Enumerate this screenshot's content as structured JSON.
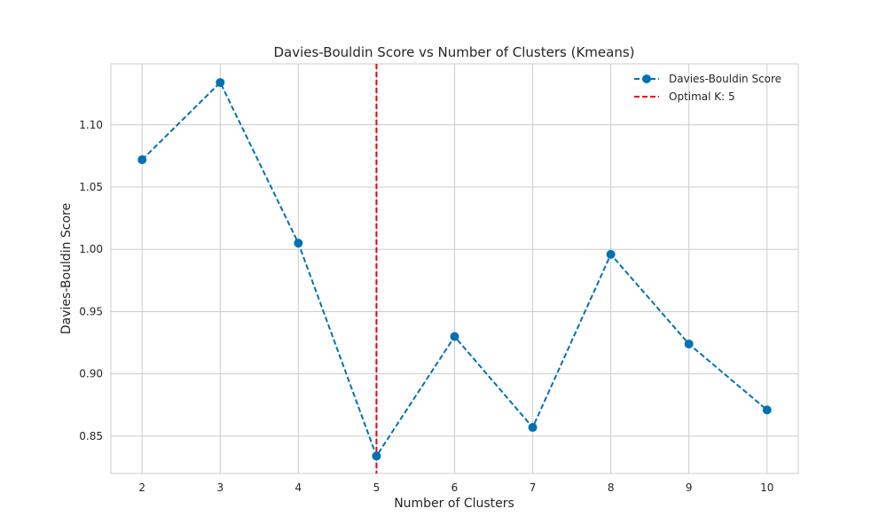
{
  "chart_data": {
    "type": "line",
    "title": "Davies-Bouldin Score vs Number of Clusters (Kmeans)",
    "xlabel": "Number of Clusters",
    "ylabel": "Davies-Bouldin Score",
    "x": [
      2,
      3,
      4,
      5,
      6,
      7,
      8,
      9,
      10
    ],
    "series": [
      {
        "name": "Davies-Bouldin Score",
        "values": [
          1.072,
          1.134,
          1.005,
          0.834,
          0.93,
          0.857,
          0.996,
          0.924,
          0.871
        ],
        "color": "#0072b2",
        "line_style": "dashed",
        "marker": "circle"
      }
    ],
    "vline": {
      "x": 5,
      "label": "Optimal K: 5",
      "color": "#e8000b",
      "line_style": "dashed"
    },
    "xlim": [
      1.6,
      10.4
    ],
    "ylim": [
      0.82,
      1.149
    ],
    "xticks": [
      2,
      3,
      4,
      5,
      6,
      7,
      8,
      9,
      10
    ],
    "yticks": [
      0.85,
      0.9,
      0.95,
      1.0,
      1.05,
      1.1
    ],
    "ytick_labels": [
      "0.85",
      "0.90",
      "0.95",
      "1.00",
      "1.05",
      "1.10"
    ],
    "grid": true,
    "legend_position": "top-right"
  }
}
